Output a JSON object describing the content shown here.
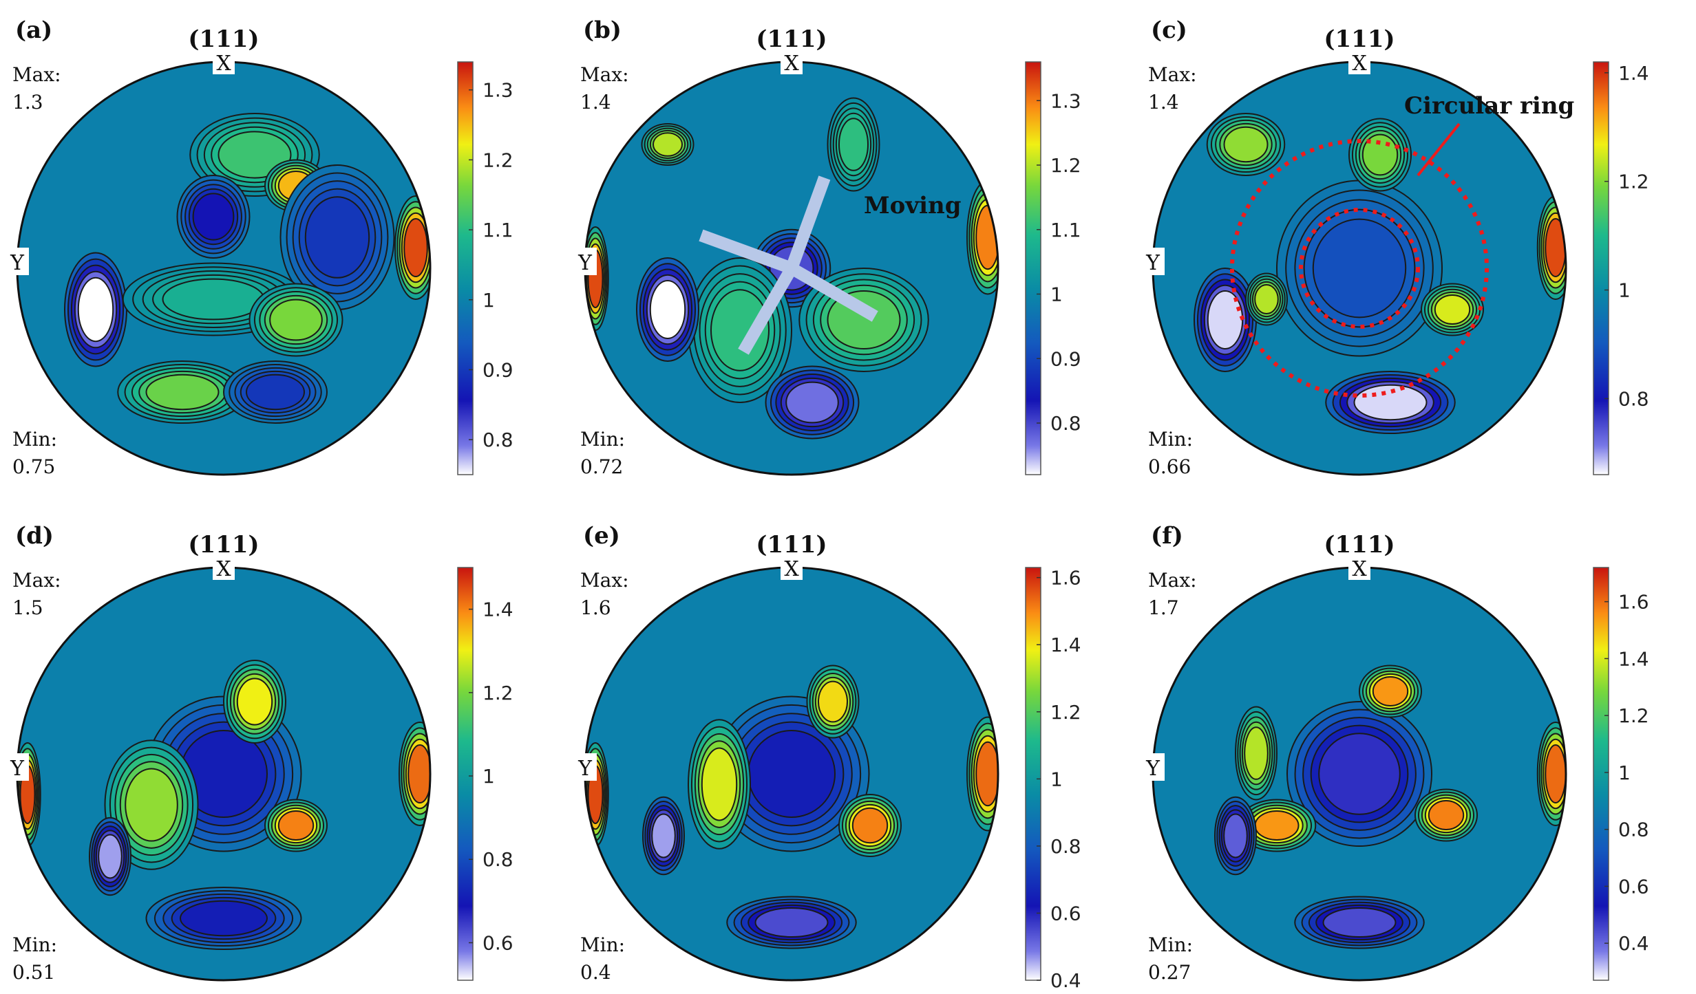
{
  "chart_data": [
    {
      "type": "heatmap",
      "panel_label": "(a)",
      "title": "(111)",
      "axis_labels": [
        "X",
        "Y"
      ],
      "max_label": "Max:",
      "max": "1.3",
      "min_label": "Min:",
      "min": "0.75",
      "colorbar_range": [
        0.75,
        1.34
      ],
      "colorbar_ticks": [
        "1.3",
        "1.2",
        "1.1",
        "1",
        "0.9",
        "0.8"
      ]
    },
    {
      "type": "heatmap",
      "panel_label": "(b)",
      "title": "(111)",
      "axis_labels": [
        "X",
        "Y"
      ],
      "max_label": "Max:",
      "max": "1.4",
      "min_label": "Min:",
      "min": "0.72",
      "annotation": "Moving",
      "colorbar_range": [
        0.72,
        1.36
      ],
      "colorbar_ticks": [
        "1.3",
        "1.2",
        "1.1",
        "1",
        "0.9",
        "0.8"
      ]
    },
    {
      "type": "heatmap",
      "panel_label": "(c)",
      "title": "(111)",
      "axis_labels": [
        "X",
        "Y"
      ],
      "max_label": "Max:",
      "max": "1.4",
      "min_label": "Min:",
      "min": "0.66",
      "annotation": "Circular ring",
      "colorbar_range": [
        0.66,
        1.42
      ],
      "colorbar_ticks": [
        "1.4",
        "1.2",
        "1",
        "0.8"
      ]
    },
    {
      "type": "heatmap",
      "panel_label": "(d)",
      "title": "(111)",
      "axis_labels": [
        "X",
        "Y"
      ],
      "max_label": "Max:",
      "max": "1.5",
      "min_label": "Min:",
      "min": "0.51",
      "colorbar_range": [
        0.51,
        1.5
      ],
      "colorbar_ticks": [
        "1.4",
        "1.2",
        "1",
        "0.8",
        "0.6"
      ]
    },
    {
      "type": "heatmap",
      "panel_label": "(e)",
      "title": "(111)",
      "axis_labels": [
        "X",
        "Y"
      ],
      "max_label": "Max:",
      "max": "1.6",
      "min_label": "Min:",
      "min": "0.4",
      "colorbar_range": [
        0.4,
        1.63
      ],
      "colorbar_ticks": [
        "1.6",
        "1.4",
        "1.2",
        "1",
        "0.8",
        "0.6",
        "0.4"
      ]
    },
    {
      "type": "heatmap",
      "panel_label": "(f)",
      "title": "(111)",
      "axis_labels": [
        "X",
        "Y"
      ],
      "max_label": "Max:",
      "max": "1.7",
      "min_label": "Min:",
      "min": "0.27",
      "colorbar_range": [
        0.27,
        1.72
      ],
      "colorbar_ticks": [
        "1.6",
        "1.4",
        "1.2",
        "1",
        "0.8",
        "0.6",
        "0.4"
      ]
    }
  ]
}
